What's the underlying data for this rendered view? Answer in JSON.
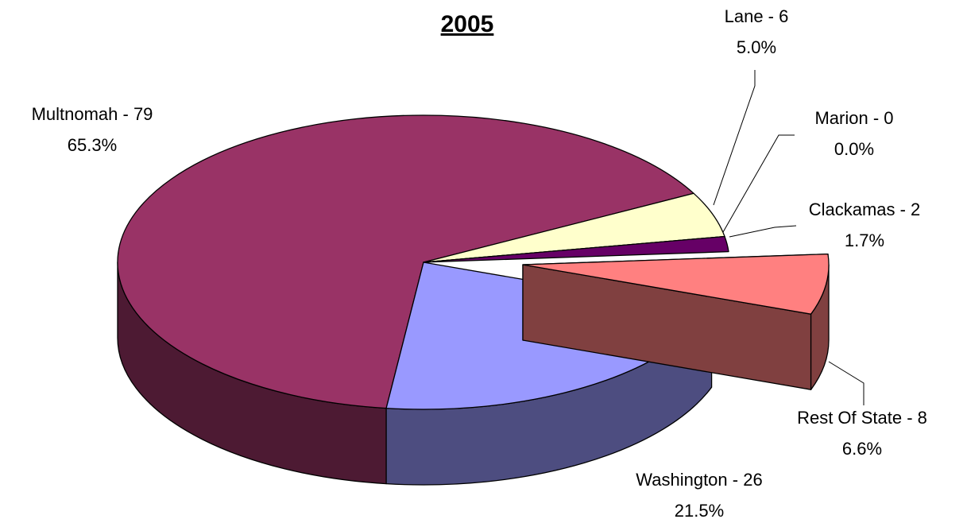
{
  "chart_data": {
    "type": "pie3d",
    "title": "2005",
    "labels": [
      "Multnomah - 79",
      "Lane - 6",
      "Marion - 0",
      "Clackamas - 2",
      "Rest Of State - 8",
      "Washington - 26"
    ],
    "values": [
      79,
      6,
      0,
      2,
      8,
      26
    ],
    "percent_labels": [
      "65.3%",
      "5.0%",
      "0.0%",
      "1.7%",
      "6.6%",
      "21.5%"
    ],
    "colors": [
      "#993366",
      "#ffffcc",
      "#660066",
      "#660066",
      "#ff8080",
      "#9999ff"
    ],
    "exploded": [
      false,
      false,
      false,
      false,
      true,
      false
    ]
  }
}
